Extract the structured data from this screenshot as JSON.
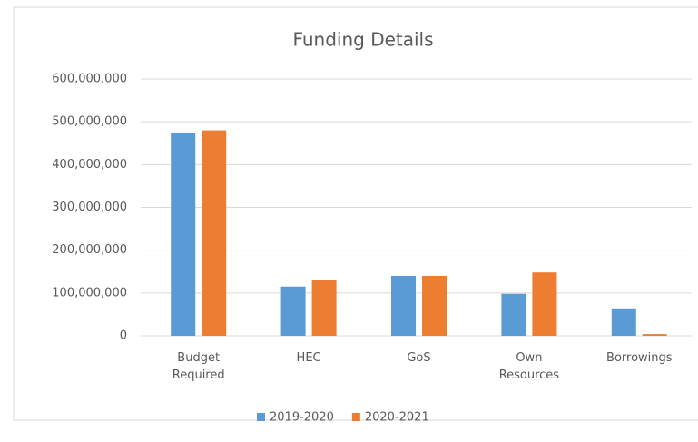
{
  "chart_data": {
    "type": "bar",
    "title": "Funding Details",
    "categories": [
      "Budget Required",
      "HEC",
      "GoS",
      "Own Resources",
      "Borrowings"
    ],
    "series": [
      {
        "name": "2019-2020",
        "color": "#5b9bd5",
        "values": [
          475000000,
          115000000,
          140000000,
          98000000,
          64000000
        ]
      },
      {
        "name": "2020-2021",
        "color": "#ed7d31",
        "values": [
          480000000,
          130000000,
          140000000,
          148000000,
          4000000
        ]
      }
    ],
    "ylim": [
      0,
      600000000
    ],
    "yticks": [
      0,
      {
        "value": 100000000,
        "label": "100,000,000"
      },
      {
        "value": 200000000,
        "label": "200,000,000"
      },
      {
        "value": 300000000,
        "label": "300,000,000"
      },
      {
        "value": 400000000,
        "label": "400,000,000"
      },
      {
        "value": 500000000,
        "label": "500,000,000"
      },
      {
        "value": 600000000,
        "label": "600,000,000"
      }
    ],
    "grid": true,
    "legend": "bottom"
  }
}
